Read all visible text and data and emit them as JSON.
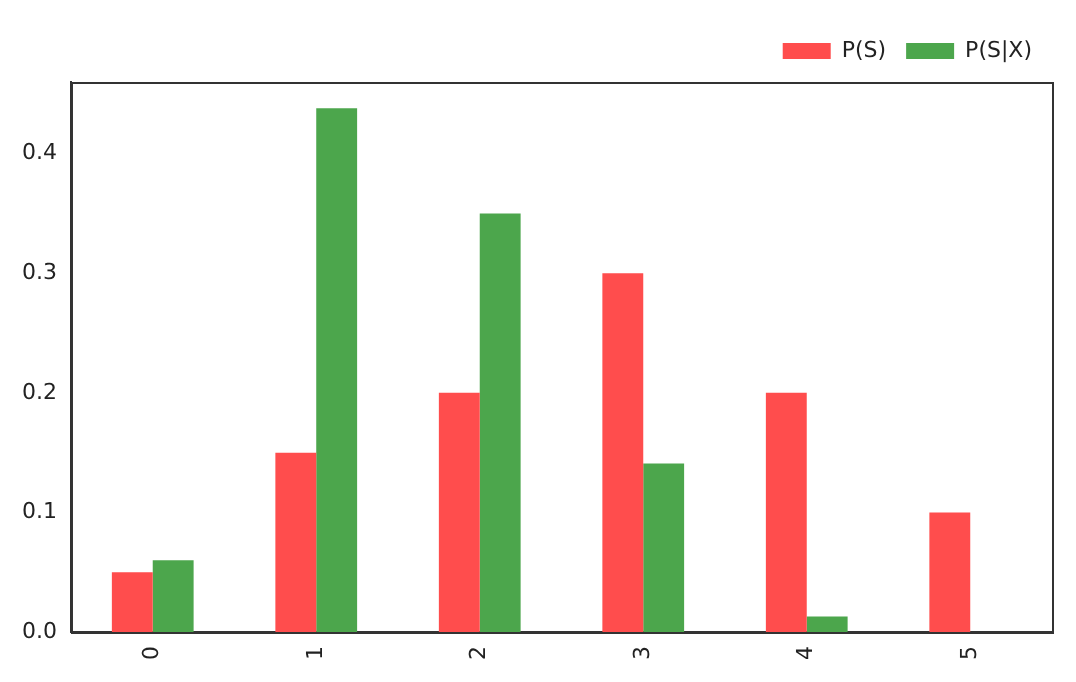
{
  "chart_data": {
    "type": "bar",
    "categories": [
      "0",
      "1",
      "2",
      "3",
      "4",
      "5"
    ],
    "series": [
      {
        "name": "P(S)",
        "color": "#ff4d4d",
        "values": [
          0.05,
          0.15,
          0.2,
          0.3,
          0.2,
          0.1
        ]
      },
      {
        "name": "P(S|X)",
        "color": "#4ca64c",
        "values": [
          0.06,
          0.438,
          0.35,
          0.141,
          0.013,
          0
        ]
      }
    ],
    "ylim": [
      0,
      0.46
    ],
    "yticks": [
      {
        "value": 0,
        "label": "0.0"
      },
      {
        "value": 0.1,
        "label": "0.1"
      },
      {
        "value": 0.2,
        "label": "0.2"
      },
      {
        "value": 0.3,
        "label": "0.3"
      },
      {
        "value": 0.4,
        "label": "0.4"
      }
    ],
    "grid": false,
    "legend": "top right"
  }
}
